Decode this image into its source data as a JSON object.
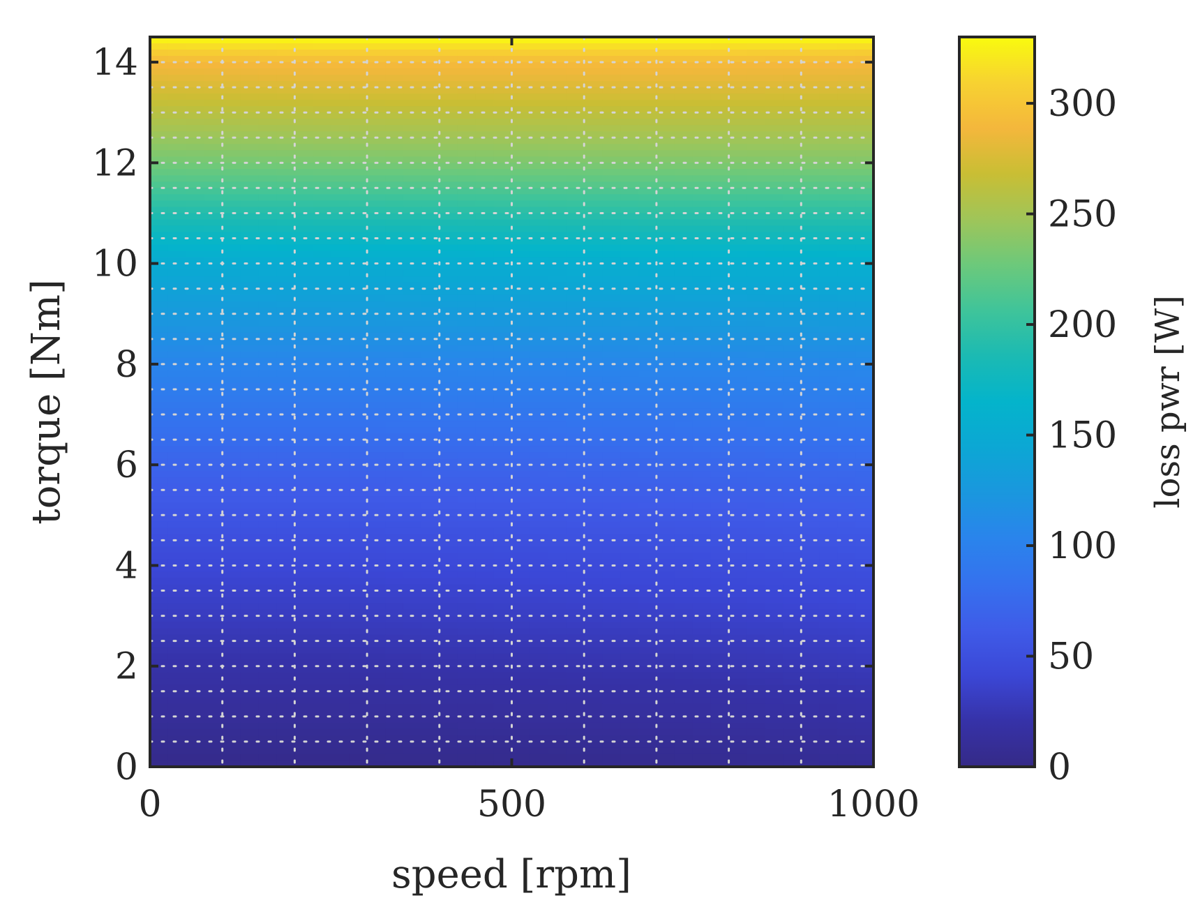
{
  "chart_data": {
    "type": "heatmap",
    "title": "",
    "xlabel": "speed [rpm]",
    "ylabel": "torque [Nm]",
    "xlim": [
      0,
      1000
    ],
    "ylim": [
      0,
      14.5
    ],
    "xticks": [
      0,
      500,
      1000
    ],
    "xtick_labels": [
      "0",
      "500",
      "1000"
    ],
    "yticks": [
      0,
      2,
      4,
      6,
      8,
      10,
      12,
      14
    ],
    "ytick_labels": [
      "0",
      "2",
      "4",
      "6",
      "8",
      "10",
      "12",
      "14"
    ],
    "grid": "on (dotted, major and minor)",
    "colormap": "parula",
    "colorbar": {
      "label": "loss pwr [W]",
      "limits": [
        0,
        330
      ],
      "ticks": [
        0,
        50,
        100,
        150,
        200,
        250,
        300
      ],
      "tick_labels": [
        "0",
        "50",
        "100",
        "150",
        "200",
        "250",
        "300"
      ]
    },
    "speed_rpm": [
      0,
      250,
      500,
      750,
      1000
    ],
    "torque_Nm": [
      0,
      2,
      4,
      6,
      8,
      10,
      12,
      14,
      14.5
    ],
    "loss_W": [
      [
        2,
        2,
        3,
        5,
        8
      ],
      [
        20,
        20,
        22,
        24,
        28
      ],
      [
        42,
        42,
        44,
        46,
        50
      ],
      [
        70,
        70,
        71,
        73,
        76
      ],
      [
        104,
        104,
        105,
        106,
        108
      ],
      [
        150,
        152,
        154,
        156,
        157
      ],
      [
        230,
        232,
        234,
        235,
        236
      ],
      [
        290,
        292,
        292,
        292,
        290
      ],
      [
        330,
        330,
        330,
        330,
        330
      ]
    ]
  }
}
